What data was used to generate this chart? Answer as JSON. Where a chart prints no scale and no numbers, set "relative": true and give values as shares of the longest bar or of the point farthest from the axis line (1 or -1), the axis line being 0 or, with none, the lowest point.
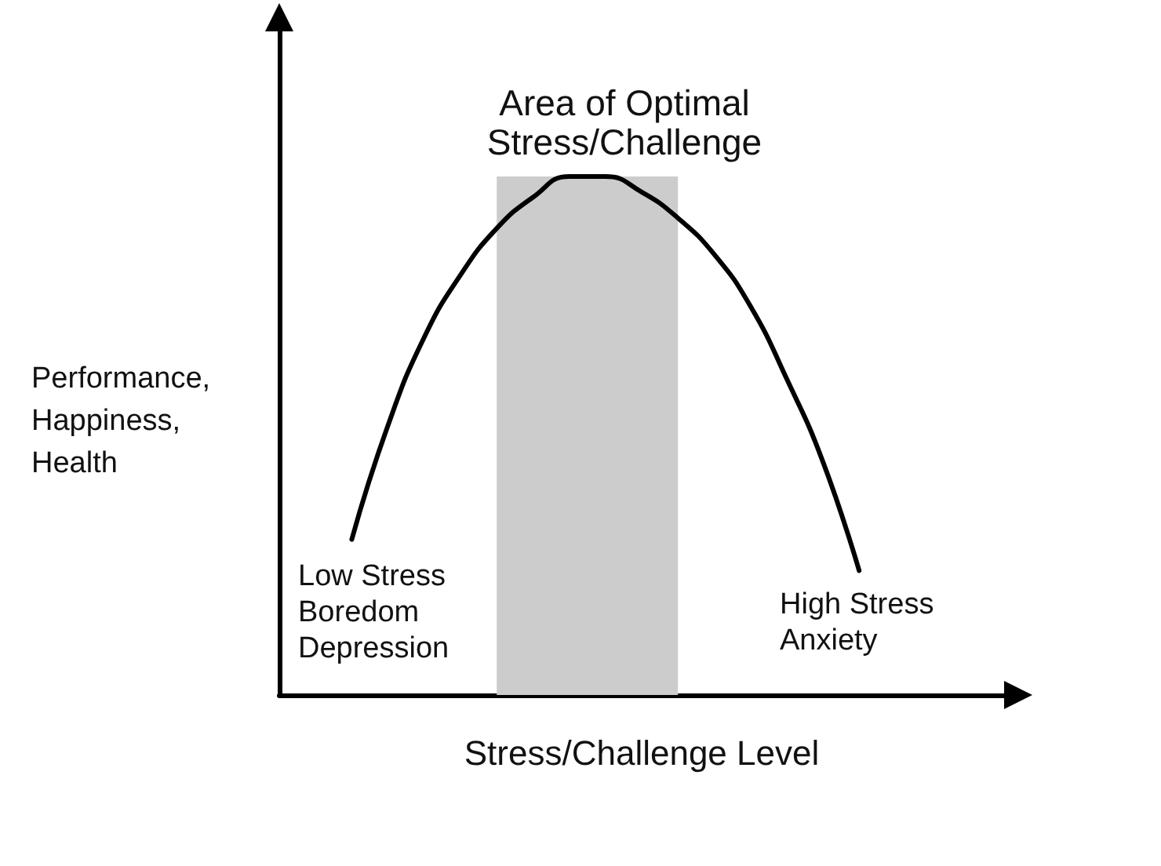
{
  "chart_data": {
    "type": "line",
    "relative": true,
    "title": "Area of Optimal\nStress/Challenge",
    "ylabel": "Performance,\nHappiness,\nHealth",
    "xlabel": "Stress/Challenge Level",
    "categories": [
      null,
      null,
      null,
      null,
      null,
      null,
      null,
      null,
      null,
      null,
      null,
      null,
      null,
      null,
      null,
      null,
      null,
      null,
      null,
      null,
      null
    ],
    "series": [
      {
        "color": "#000000",
        "values": [
          null,
          null,
          0.3,
          0.52,
          0.69,
          0.81,
          0.9,
          0.96,
          1.0,
          1.0,
          0.97,
          0.92,
          0.85,
          0.75,
          0.61,
          0.45,
          0.24,
          null,
          null,
          null,
          null
        ]
      }
    ],
    "annotations": [
      "Low Stress\nBoredom\nDepression",
      "High Stress\nAnxiety"
    ],
    "marker": "none",
    "line_style": "solid",
    "grid": false
  }
}
